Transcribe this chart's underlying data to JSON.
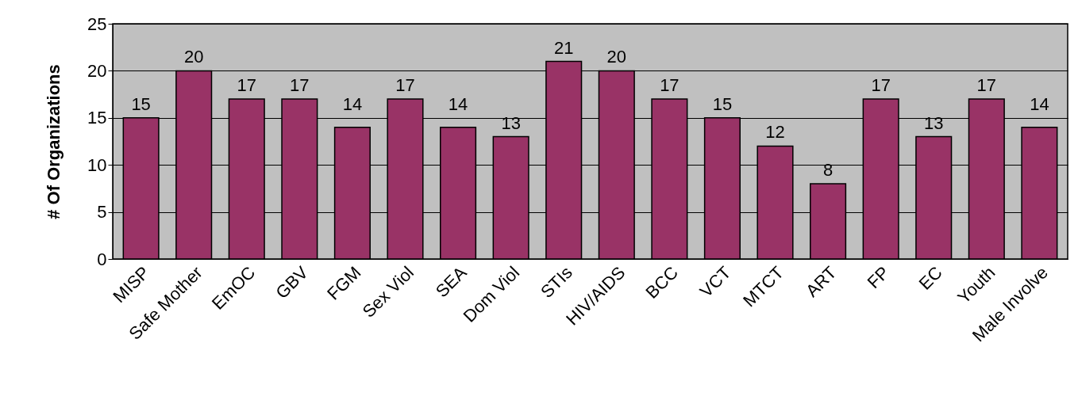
{
  "chart_data": {
    "type": "bar",
    "ylabel": "# Of Organizations",
    "categories": [
      "MISP",
      "Safe Mother",
      "EmOC",
      "GBV",
      "FGM",
      "Sex Viol",
      "SEA",
      "Dom Viol",
      "STIs",
      "HIV/AIDS",
      "BCC",
      "VCT",
      "MTCT",
      "ART",
      "FP",
      "EC",
      "Youth",
      "Male Involve"
    ],
    "values": [
      15,
      20,
      17,
      17,
      14,
      17,
      14,
      13,
      21,
      20,
      17,
      15,
      12,
      8,
      17,
      13,
      17,
      14
    ],
    "color": "#993366",
    "ylim": [
      0,
      25
    ],
    "yticks": [
      0,
      5,
      10,
      15,
      20,
      25
    ],
    "grid": "y",
    "data_labels": true
  }
}
